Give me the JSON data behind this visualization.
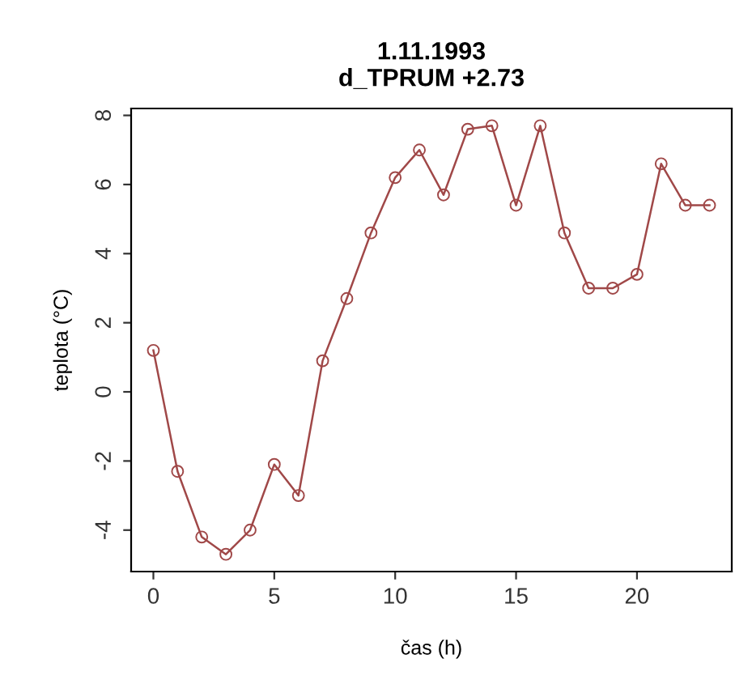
{
  "chart_data": {
    "type": "line",
    "title": "1.11.1993\nd_TPRUM +2.73",
    "xlabel": "čas (h)",
    "ylabel": "teplota (°C)",
    "x": [
      0,
      1,
      2,
      3,
      4,
      5,
      6,
      7,
      8,
      9,
      10,
      11,
      12,
      13,
      14,
      15,
      16,
      17,
      18,
      19,
      20,
      21,
      22,
      23
    ],
    "series": [
      {
        "color": "#a04848",
        "values": [
          1.2,
          -2.3,
          -4.2,
          -4.7,
          -4.0,
          -2.1,
          -3.0,
          0.9,
          2.7,
          4.6,
          6.2,
          7.0,
          5.7,
          7.6,
          7.7,
          5.4,
          7.7,
          4.6,
          3.0,
          3.0,
          3.4,
          6.6,
          5.4,
          5.4
        ]
      }
    ],
    "xlim": [
      -0.92,
      23.92
    ],
    "ylim": [
      -5.2,
      8.2
    ],
    "xticks": [
      0,
      5,
      10,
      15,
      20
    ],
    "yticks": [
      -4,
      -2,
      0,
      2,
      4,
      6,
      8
    ],
    "marker": "circle",
    "line_style": "solid",
    "grid": false,
    "legend": false
  }
}
